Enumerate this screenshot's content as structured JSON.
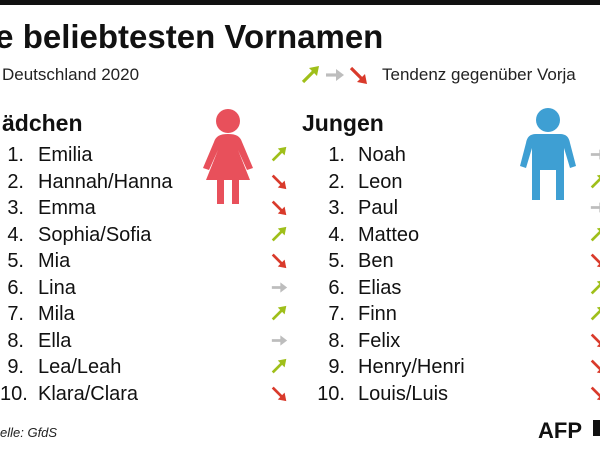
{
  "header": {
    "title": "ie beliebtesten Vornamen",
    "subtitle": "Deutschland 2020",
    "legend_text": "Tendenz gegenüber Vorja"
  },
  "colors": {
    "up": "#9fbf1a",
    "same": "#bdbdbd",
    "down": "#d93a2b",
    "girl_figure": "#e8505b",
    "boy_figure": "#3e9fd3"
  },
  "chart_data": [
    {
      "type": "table",
      "title": "ädchen",
      "columns": [
        "rank",
        "name",
        "trend"
      ],
      "rows": [
        {
          "rank": "1.",
          "name": "Emilia",
          "trend": "up"
        },
        {
          "rank": "2.",
          "name": "Hannah/Hanna",
          "trend": "down"
        },
        {
          "rank": "3.",
          "name": "Emma",
          "trend": "down"
        },
        {
          "rank": "4.",
          "name": "Sophia/Sofia",
          "trend": "up"
        },
        {
          "rank": "5.",
          "name": "Mia",
          "trend": "down"
        },
        {
          "rank": "6.",
          "name": "Lina",
          "trend": "same"
        },
        {
          "rank": "7.",
          "name": "Mila",
          "trend": "up"
        },
        {
          "rank": "8.",
          "name": "Ella",
          "trend": "same"
        },
        {
          "rank": "9.",
          "name": "Lea/Leah",
          "trend": "up"
        },
        {
          "rank": "10.",
          "name": "Klara/Clara",
          "trend": "down"
        }
      ],
      "figure_icon": "girl-figure-icon"
    },
    {
      "type": "table",
      "title": "Jungen",
      "columns": [
        "rank",
        "name",
        "trend"
      ],
      "rows": [
        {
          "rank": "1.",
          "name": "Noah",
          "trend": "same"
        },
        {
          "rank": "2.",
          "name": "Leon",
          "trend": "up"
        },
        {
          "rank": "3.",
          "name": "Paul",
          "trend": "same"
        },
        {
          "rank": "4.",
          "name": "Matteo",
          "trend": "up"
        },
        {
          "rank": "5.",
          "name": "Ben",
          "trend": "down"
        },
        {
          "rank": "6.",
          "name": "Elias",
          "trend": "up"
        },
        {
          "rank": "7.",
          "name": "Finn",
          "trend": "up"
        },
        {
          "rank": "8.",
          "name": "Felix",
          "trend": "down"
        },
        {
          "rank": "9.",
          "name": "Henry/Henri",
          "trend": "down"
        },
        {
          "rank": "10.",
          "name": "Louis/Luis",
          "trend": "down"
        }
      ],
      "figure_icon": "boy-figure-icon"
    }
  ],
  "footer": {
    "source": "elle: GfdS",
    "logo": "AFP"
  }
}
